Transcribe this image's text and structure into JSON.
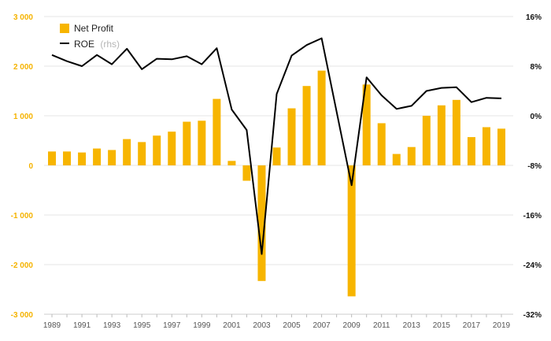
{
  "chart_data": {
    "type": "bar",
    "title": "",
    "xlabel": "",
    "ylabel": "",
    "legend": {
      "placement": "top-left",
      "net_profit_label": "Net Profit",
      "roe_label": "ROE",
      "roe_suffix": "(rhs)"
    },
    "colors": {
      "bar": "#f7b500",
      "line": "#000000",
      "left_axis": "#f5b300",
      "grid": "#e6e6e6"
    },
    "grid": true,
    "years": [
      1989,
      1990,
      1991,
      1992,
      1993,
      1994,
      1995,
      1996,
      1997,
      1998,
      1999,
      2000,
      2001,
      2002,
      2003,
      2004,
      2005,
      2006,
      2007,
      2008,
      2009,
      2010,
      2011,
      2012,
      2013,
      2014,
      2015,
      2016,
      2017,
      2018,
      2019
    ],
    "x_tick_labels": [
      "1989",
      "1991",
      "1993",
      "1995",
      "1997",
      "1999",
      "2001",
      "2003",
      "2005",
      "2007",
      "2009",
      "2011",
      "2013",
      "2015",
      "2017",
      "2019"
    ],
    "left_axis": {
      "min": -3000,
      "max": 3000,
      "ticks": [
        3000,
        2000,
        1000,
        0,
        -1000,
        -2000,
        -3000
      ],
      "tick_labels": [
        "3 000",
        "2 000",
        "1 000",
        "0",
        "-1 000",
        "-2 000",
        "-3 000"
      ]
    },
    "right_axis": {
      "min": -32,
      "max": 16,
      "ticks": [
        16,
        8,
        0,
        -8,
        -16,
        -24,
        -32
      ],
      "tick_labels": [
        "16%",
        "8%",
        "0%",
        "-8%",
        "-16%",
        "-24%",
        "-32%"
      ]
    },
    "series": [
      {
        "name": "Net Profit",
        "type": "bar",
        "axis": "left",
        "values": [
          280,
          280,
          260,
          340,
          310,
          530,
          470,
          600,
          680,
          880,
          900,
          1340,
          90,
          -310,
          -2330,
          360,
          1150,
          1600,
          1910,
          null,
          -2640,
          1630,
          850,
          230,
          370,
          1000,
          1210,
          1320,
          570,
          770,
          740
        ]
      },
      {
        "name": "ROE",
        "type": "line",
        "axis": "right",
        "values": [
          9.8,
          8.8,
          8.0,
          9.8,
          8.3,
          10.8,
          7.5,
          9.2,
          9.1,
          9.6,
          8.3,
          10.9,
          1.0,
          -2.3,
          -22.3,
          3.5,
          9.7,
          11.4,
          12.5,
          null,
          -11.2,
          6.2,
          3.3,
          1.1,
          1.6,
          4.0,
          4.5,
          4.6,
          2.2,
          2.9,
          2.8
        ]
      }
    ]
  }
}
